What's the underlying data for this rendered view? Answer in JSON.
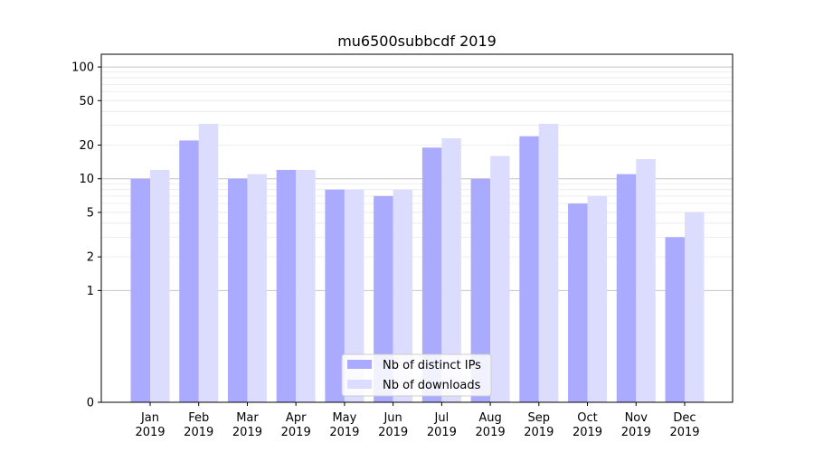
{
  "chart_data": {
    "type": "bar",
    "title": "mu6500subbcdf 2019",
    "xlabel": "",
    "ylabel": "",
    "y_scale": "symlog",
    "ylim": [
      0,
      130
    ],
    "y_ticks": [
      0,
      1,
      2,
      5,
      10,
      20,
      50,
      100
    ],
    "y_tick_labels": [
      "0",
      "1",
      "2",
      "5",
      "10",
      "20",
      "50",
      "100"
    ],
    "categories": [
      {
        "month": "Jan",
        "year": "2019"
      },
      {
        "month": "Feb",
        "year": "2019"
      },
      {
        "month": "Mar",
        "year": "2019"
      },
      {
        "month": "Apr",
        "year": "2019"
      },
      {
        "month": "May",
        "year": "2019"
      },
      {
        "month": "Jun",
        "year": "2019"
      },
      {
        "month": "Jul",
        "year": "2019"
      },
      {
        "month": "Aug",
        "year": "2019"
      },
      {
        "month": "Sep",
        "year": "2019"
      },
      {
        "month": "Oct",
        "year": "2019"
      },
      {
        "month": "Nov",
        "year": "2019"
      },
      {
        "month": "Dec",
        "year": "2019"
      }
    ],
    "series": [
      {
        "name": "Nb of distinct IPs",
        "color": "#aaaaff",
        "values": [
          10,
          22,
          10,
          12,
          8,
          7,
          19,
          10,
          24,
          6,
          11,
          3
        ]
      },
      {
        "name": "Nb of downloads",
        "color": "#dcdcff",
        "values": [
          12,
          31,
          11,
          12,
          8,
          8,
          23,
          16,
          31,
          7,
          15,
          5
        ]
      }
    ],
    "grid": true,
    "legend_position": "bottom-center"
  }
}
